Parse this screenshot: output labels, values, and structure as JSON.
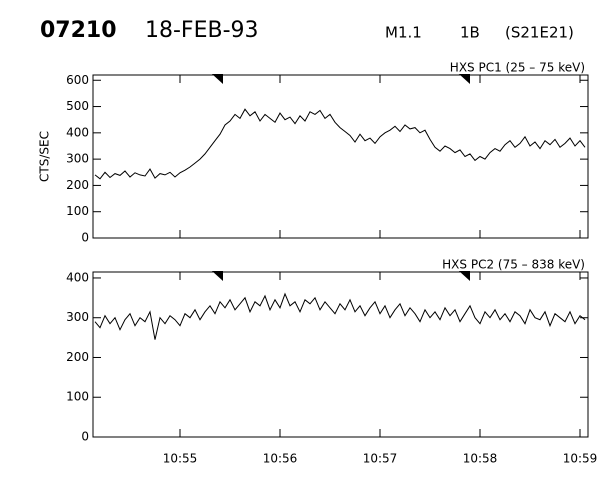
{
  "header": {
    "event": "07210",
    "date": "18-FEB-93",
    "class": "M1.1",
    "optical": "1B",
    "location": "(S21E21)"
  },
  "chart_data": [
    {
      "type": "line",
      "title": "HXS PC1 (25 – 75 keV)",
      "ylabel": "CTS/SEC",
      "color": "#000000",
      "x": [
        54.15,
        54.2,
        54.25,
        54.3,
        54.35,
        54.4,
        54.45,
        54.5,
        54.55,
        54.6,
        54.65,
        54.7,
        54.75,
        54.8,
        54.85,
        54.9,
        54.95,
        55.0,
        55.05,
        55.1,
        55.15,
        55.2,
        55.25,
        55.3,
        55.35,
        55.4,
        55.45,
        55.5,
        55.55,
        55.6,
        55.65,
        55.7,
        55.75,
        55.8,
        55.85,
        55.9,
        55.95,
        56.0,
        56.05,
        56.1,
        56.15,
        56.2,
        56.25,
        56.3,
        56.35,
        56.4,
        56.45,
        56.5,
        56.55,
        56.6,
        56.65,
        56.7,
        56.75,
        56.8,
        56.85,
        56.9,
        56.95,
        57.0,
        57.05,
        57.1,
        57.15,
        57.2,
        57.25,
        57.3,
        57.35,
        57.4,
        57.45,
        57.5,
        57.55,
        57.6,
        57.65,
        57.7,
        57.75,
        57.8,
        57.85,
        57.9,
        57.95,
        58.0,
        58.05,
        58.1,
        58.15,
        58.2,
        58.25,
        58.3,
        58.35,
        58.4,
        58.45,
        58.5,
        58.55,
        58.6,
        58.65,
        58.7,
        58.75,
        58.8,
        58.85,
        58.9,
        58.95,
        59.0,
        59.05
      ],
      "values": [
        240,
        225,
        250,
        230,
        245,
        238,
        255,
        232,
        248,
        240,
        236,
        262,
        228,
        245,
        240,
        250,
        232,
        248,
        258,
        270,
        285,
        300,
        320,
        345,
        370,
        395,
        430,
        445,
        470,
        455,
        490,
        465,
        480,
        445,
        470,
        455,
        440,
        475,
        450,
        460,
        435,
        465,
        445,
        480,
        470,
        485,
        455,
        470,
        440,
        420,
        405,
        390,
        365,
        395,
        370,
        380,
        360,
        385,
        400,
        410,
        425,
        405,
        430,
        415,
        420,
        400,
        410,
        375,
        345,
        330,
        350,
        340,
        325,
        335,
        310,
        320,
        295,
        310,
        300,
        325,
        340,
        330,
        355,
        370,
        345,
        360,
        385,
        350,
        365,
        340,
        370,
        355,
        375,
        345,
        360,
        380,
        350,
        370,
        345
      ],
      "xlim": [
        54.13,
        59.08
      ],
      "xticks": [
        55,
        56,
        57,
        58,
        59
      ],
      "ylim": [
        0,
        620
      ],
      "yticks": [
        0,
        100,
        200,
        300,
        400,
        500,
        600
      ],
      "markers": [
        55.35,
        57.82
      ]
    },
    {
      "type": "line",
      "title": "HXS PC2 (75 – 838 keV)",
      "color": "#000000",
      "x": [
        54.15,
        54.2,
        54.25,
        54.3,
        54.35,
        54.4,
        54.45,
        54.5,
        54.55,
        54.6,
        54.65,
        54.7,
        54.75,
        54.8,
        54.85,
        54.9,
        54.95,
        55.0,
        55.05,
        55.1,
        55.15,
        55.2,
        55.25,
        55.3,
        55.35,
        55.4,
        55.45,
        55.5,
        55.55,
        55.6,
        55.65,
        55.7,
        55.75,
        55.8,
        55.85,
        55.9,
        55.95,
        56.0,
        56.05,
        56.1,
        56.15,
        56.2,
        56.25,
        56.3,
        56.35,
        56.4,
        56.45,
        56.5,
        56.55,
        56.6,
        56.65,
        56.7,
        56.75,
        56.8,
        56.85,
        56.9,
        56.95,
        57.0,
        57.05,
        57.1,
        57.15,
        57.2,
        57.25,
        57.3,
        57.35,
        57.4,
        57.45,
        57.5,
        57.55,
        57.6,
        57.65,
        57.7,
        57.75,
        57.8,
        57.85,
        57.9,
        57.95,
        58.0,
        58.05,
        58.1,
        58.15,
        58.2,
        58.25,
        58.3,
        58.35,
        58.4,
        58.45,
        58.5,
        58.55,
        58.6,
        58.65,
        58.7,
        58.75,
        58.8,
        58.85,
        58.9,
        58.95,
        59.0,
        59.05
      ],
      "values": [
        290,
        275,
        305,
        285,
        300,
        270,
        295,
        310,
        280,
        300,
        290,
        315,
        245,
        300,
        285,
        305,
        295,
        280,
        310,
        300,
        320,
        295,
        315,
        330,
        310,
        340,
        325,
        345,
        320,
        335,
        350,
        315,
        340,
        330,
        355,
        320,
        345,
        325,
        360,
        330,
        340,
        315,
        345,
        335,
        350,
        320,
        340,
        325,
        310,
        335,
        320,
        345,
        315,
        330,
        305,
        325,
        340,
        310,
        330,
        300,
        320,
        335,
        305,
        325,
        310,
        290,
        320,
        300,
        315,
        295,
        325,
        305,
        320,
        290,
        310,
        330,
        300,
        285,
        315,
        300,
        320,
        295,
        310,
        290,
        315,
        305,
        285,
        320,
        300,
        295,
        315,
        280,
        310,
        300,
        290,
        315,
        285,
        305,
        295
      ],
      "xlim": [
        54.13,
        59.08
      ],
      "xticks": [
        {
          "value": 55,
          "label": "10:55"
        },
        {
          "value": 56,
          "label": "10:56"
        },
        {
          "value": 57,
          "label": "10:57"
        },
        {
          "value": 58,
          "label": "10:58"
        },
        {
          "value": 59,
          "label": "10:59"
        }
      ],
      "ylim": [
        0,
        415
      ],
      "yticks": [
        0,
        100,
        200,
        300,
        400
      ],
      "markers": [
        55.35,
        57.82
      ]
    }
  ]
}
